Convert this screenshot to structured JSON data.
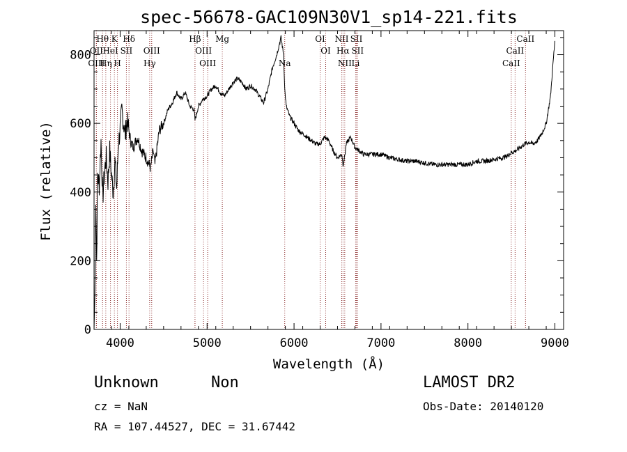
{
  "chart_data": {
    "type": "line",
    "title": "spec-56678-GAC109N30V1_sp14-221.fits",
    "xlabel": "Wavelength (Å)",
    "ylabel": "Flux (relative)",
    "xlim": [
      3700,
      9100
    ],
    "ylim": [
      0,
      870
    ],
    "x_ticks": [
      4000,
      5000,
      6000,
      7000,
      8000,
      9000
    ],
    "y_ticks": [
      0,
      200,
      400,
      600,
      800
    ],
    "grid": false,
    "series": [
      {
        "x": [
          3700,
          3710,
          3720,
          3730,
          3740,
          3760,
          3780,
          3800,
          3820,
          3840,
          3860,
          3880,
          3900,
          3920,
          3940,
          3960,
          3980,
          4000,
          4020,
          4040,
          4060,
          4080,
          4100,
          4120,
          4150,
          4200,
          4250,
          4300,
          4350,
          4380,
          4400,
          4450,
          4500,
          4550,
          4600,
          4650,
          4700,
          4750,
          4800,
          4850,
          4861,
          4900,
          4950,
          5000,
          5050,
          5100,
          5150,
          5200,
          5250,
          5300,
          5350,
          5400,
          5450,
          5500,
          5550,
          5600,
          5650,
          5700,
          5750,
          5800,
          5850,
          5880,
          5893,
          5910,
          5950,
          6000,
          6050,
          6100,
          6150,
          6200,
          6250,
          6300,
          6350,
          6400,
          6450,
          6500,
          6550,
          6563,
          6580,
          6600,
          6650,
          6700,
          6750,
          6800,
          6900,
          7000,
          7100,
          7200,
          7300,
          7400,
          7500,
          7600,
          7700,
          7800,
          7900,
          8000,
          8100,
          8200,
          8300,
          8400,
          8450,
          8500,
          8550,
          8600,
          8650,
          8700,
          8750,
          8800,
          8850,
          8900,
          8950,
          8980,
          9000
        ],
        "y": [
          0,
          100,
          390,
          200,
          450,
          420,
          550,
          380,
          460,
          500,
          430,
          520,
          450,
          400,
          490,
          410,
          540,
          580,
          640,
          600,
          570,
          610,
          580,
          550,
          530,
          560,
          520,
          500,
          470,
          520,
          480,
          580,
          600,
          640,
          660,
          690,
          670,
          690,
          650,
          640,
          610,
          650,
          670,
          680,
          700,
          710,
          690,
          680,
          700,
          720,
          730,
          720,
          700,
          710,
          700,
          680,
          660,
          700,
          760,
          800,
          850,
          800,
          700,
          650,
          620,
          600,
          580,
          570,
          560,
          550,
          540,
          540,
          560,
          550,
          520,
          500,
          510,
          480,
          500,
          540,
          560,
          530,
          520,
          510,
          510,
          510,
          500,
          495,
          490,
          490,
          485,
          480,
          480,
          480,
          480,
          480,
          490,
          490,
          495,
          500,
          505,
          515,
          520,
          530,
          540,
          545,
          540,
          550,
          570,
          600,
          680,
          780,
          840
        ]
      }
    ],
    "lines": [
      {
        "label": "Hθ",
        "wl": 3798,
        "row": 0
      },
      {
        "label": "K",
        "wl": 3934,
        "row": 0
      },
      {
        "label": "Hδ",
        "wl": 4102,
        "row": 0
      },
      {
        "label": "Hβ",
        "wl": 4861,
        "row": 0
      },
      {
        "label": "Mg",
        "wl": 5175,
        "row": 0
      },
      {
        "label": "OI",
        "wl": 6300,
        "row": 0
      },
      {
        "label": "NII",
        "wl": 6548,
        "row": 0
      },
      {
        "label": "SII",
        "wl": 6717,
        "row": 0
      },
      {
        "label": "CaII",
        "wl": 8662,
        "row": 0
      },
      {
        "label": "OII",
        "wl": 3727,
        "row": 1
      },
      {
        "label": "HeI",
        "wl": 3889,
        "row": 1
      },
      {
        "label": "SII",
        "wl": 4072,
        "row": 1
      },
      {
        "label": "OIII",
        "wl": 4363,
        "row": 1
      },
      {
        "label": "OIII",
        "wl": 4959,
        "row": 1
      },
      {
        "label": "OI",
        "wl": 6364,
        "row": 1
      },
      {
        "label": "Hα",
        "wl": 6563,
        "row": 1
      },
      {
        "label": "SII",
        "wl": 6731,
        "row": 1
      },
      {
        "label": "CaII",
        "wl": 8542,
        "row": 1
      },
      {
        "label": "OIII",
        "wl": 3727,
        "row": 2
      },
      {
        "label": "Hη",
        "wl": 3835,
        "row": 2
      },
      {
        "label": "H",
        "wl": 3969,
        "row": 2
      },
      {
        "label": "Hγ",
        "wl": 4340,
        "row": 2
      },
      {
        "label": "OIII",
        "wl": 5007,
        "row": 2
      },
      {
        "label": "Na",
        "wl": 5893,
        "row": 2
      },
      {
        "label": "NII",
        "wl": 6583,
        "row": 2
      },
      {
        "label": "Li",
        "wl": 6708,
        "row": 2
      },
      {
        "label": "CaII",
        "wl": 8498,
        "row": 2
      }
    ]
  },
  "info": {
    "class": "Unknown",
    "subclass": "Non",
    "survey": "LAMOST DR2",
    "cz": "cz = NaN",
    "obs_date": "Obs-Date: 20140120",
    "coords": "RA = 107.44527, DEC =  31.67442"
  }
}
